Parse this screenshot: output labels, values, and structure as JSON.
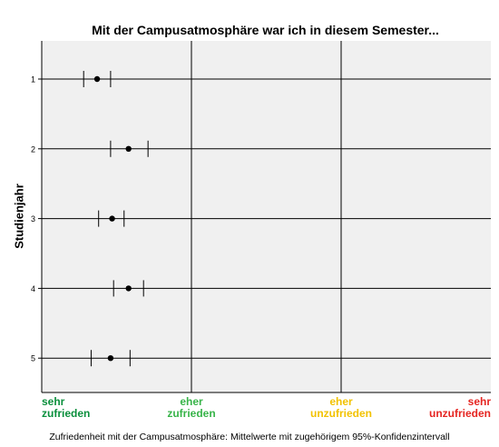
{
  "chart_data": {
    "type": "scatter",
    "title": "Mit der Campusatmosphäre war ich in diesem Semester...",
    "ylabel": "Studienjahr",
    "xlabel": "",
    "xlim": [
      1,
      4
    ],
    "categories": [
      "1",
      "2",
      "3",
      "4",
      "5"
    ],
    "series": [
      {
        "values": [
          1.37,
          1.58,
          1.47,
          1.58,
          1.46
        ],
        "ci_lower": [
          1.28,
          1.46,
          1.38,
          1.48,
          1.33
        ],
        "ci_upper": [
          1.46,
          1.71,
          1.55,
          1.68,
          1.59
        ]
      }
    ],
    "x_tick_labels": [
      {
        "value": 1,
        "lines": [
          "sehr",
          "zufrieden"
        ],
        "color": "#0a8f3c",
        "align": "left"
      },
      {
        "value": 2,
        "lines": [
          "eher",
          "zufrieden"
        ],
        "color": "#38b449",
        "align": "center"
      },
      {
        "value": 3,
        "lines": [
          "eher",
          "unzufrieden"
        ],
        "color": "#f2c200",
        "align": "center"
      },
      {
        "value": 4,
        "lines": [
          "sehr",
          "unzufrieden"
        ],
        "color": "#e52521",
        "align": "right"
      }
    ],
    "grid": true,
    "footnote": "Zufriedenheit mit der Campusatmosphäre: Mittelwerte mit zugehörigem 95%-Konfidenzintervall",
    "colors": {
      "plot_background": "#f0f0f0",
      "gridline": "#000000",
      "marker": "#000000"
    }
  }
}
